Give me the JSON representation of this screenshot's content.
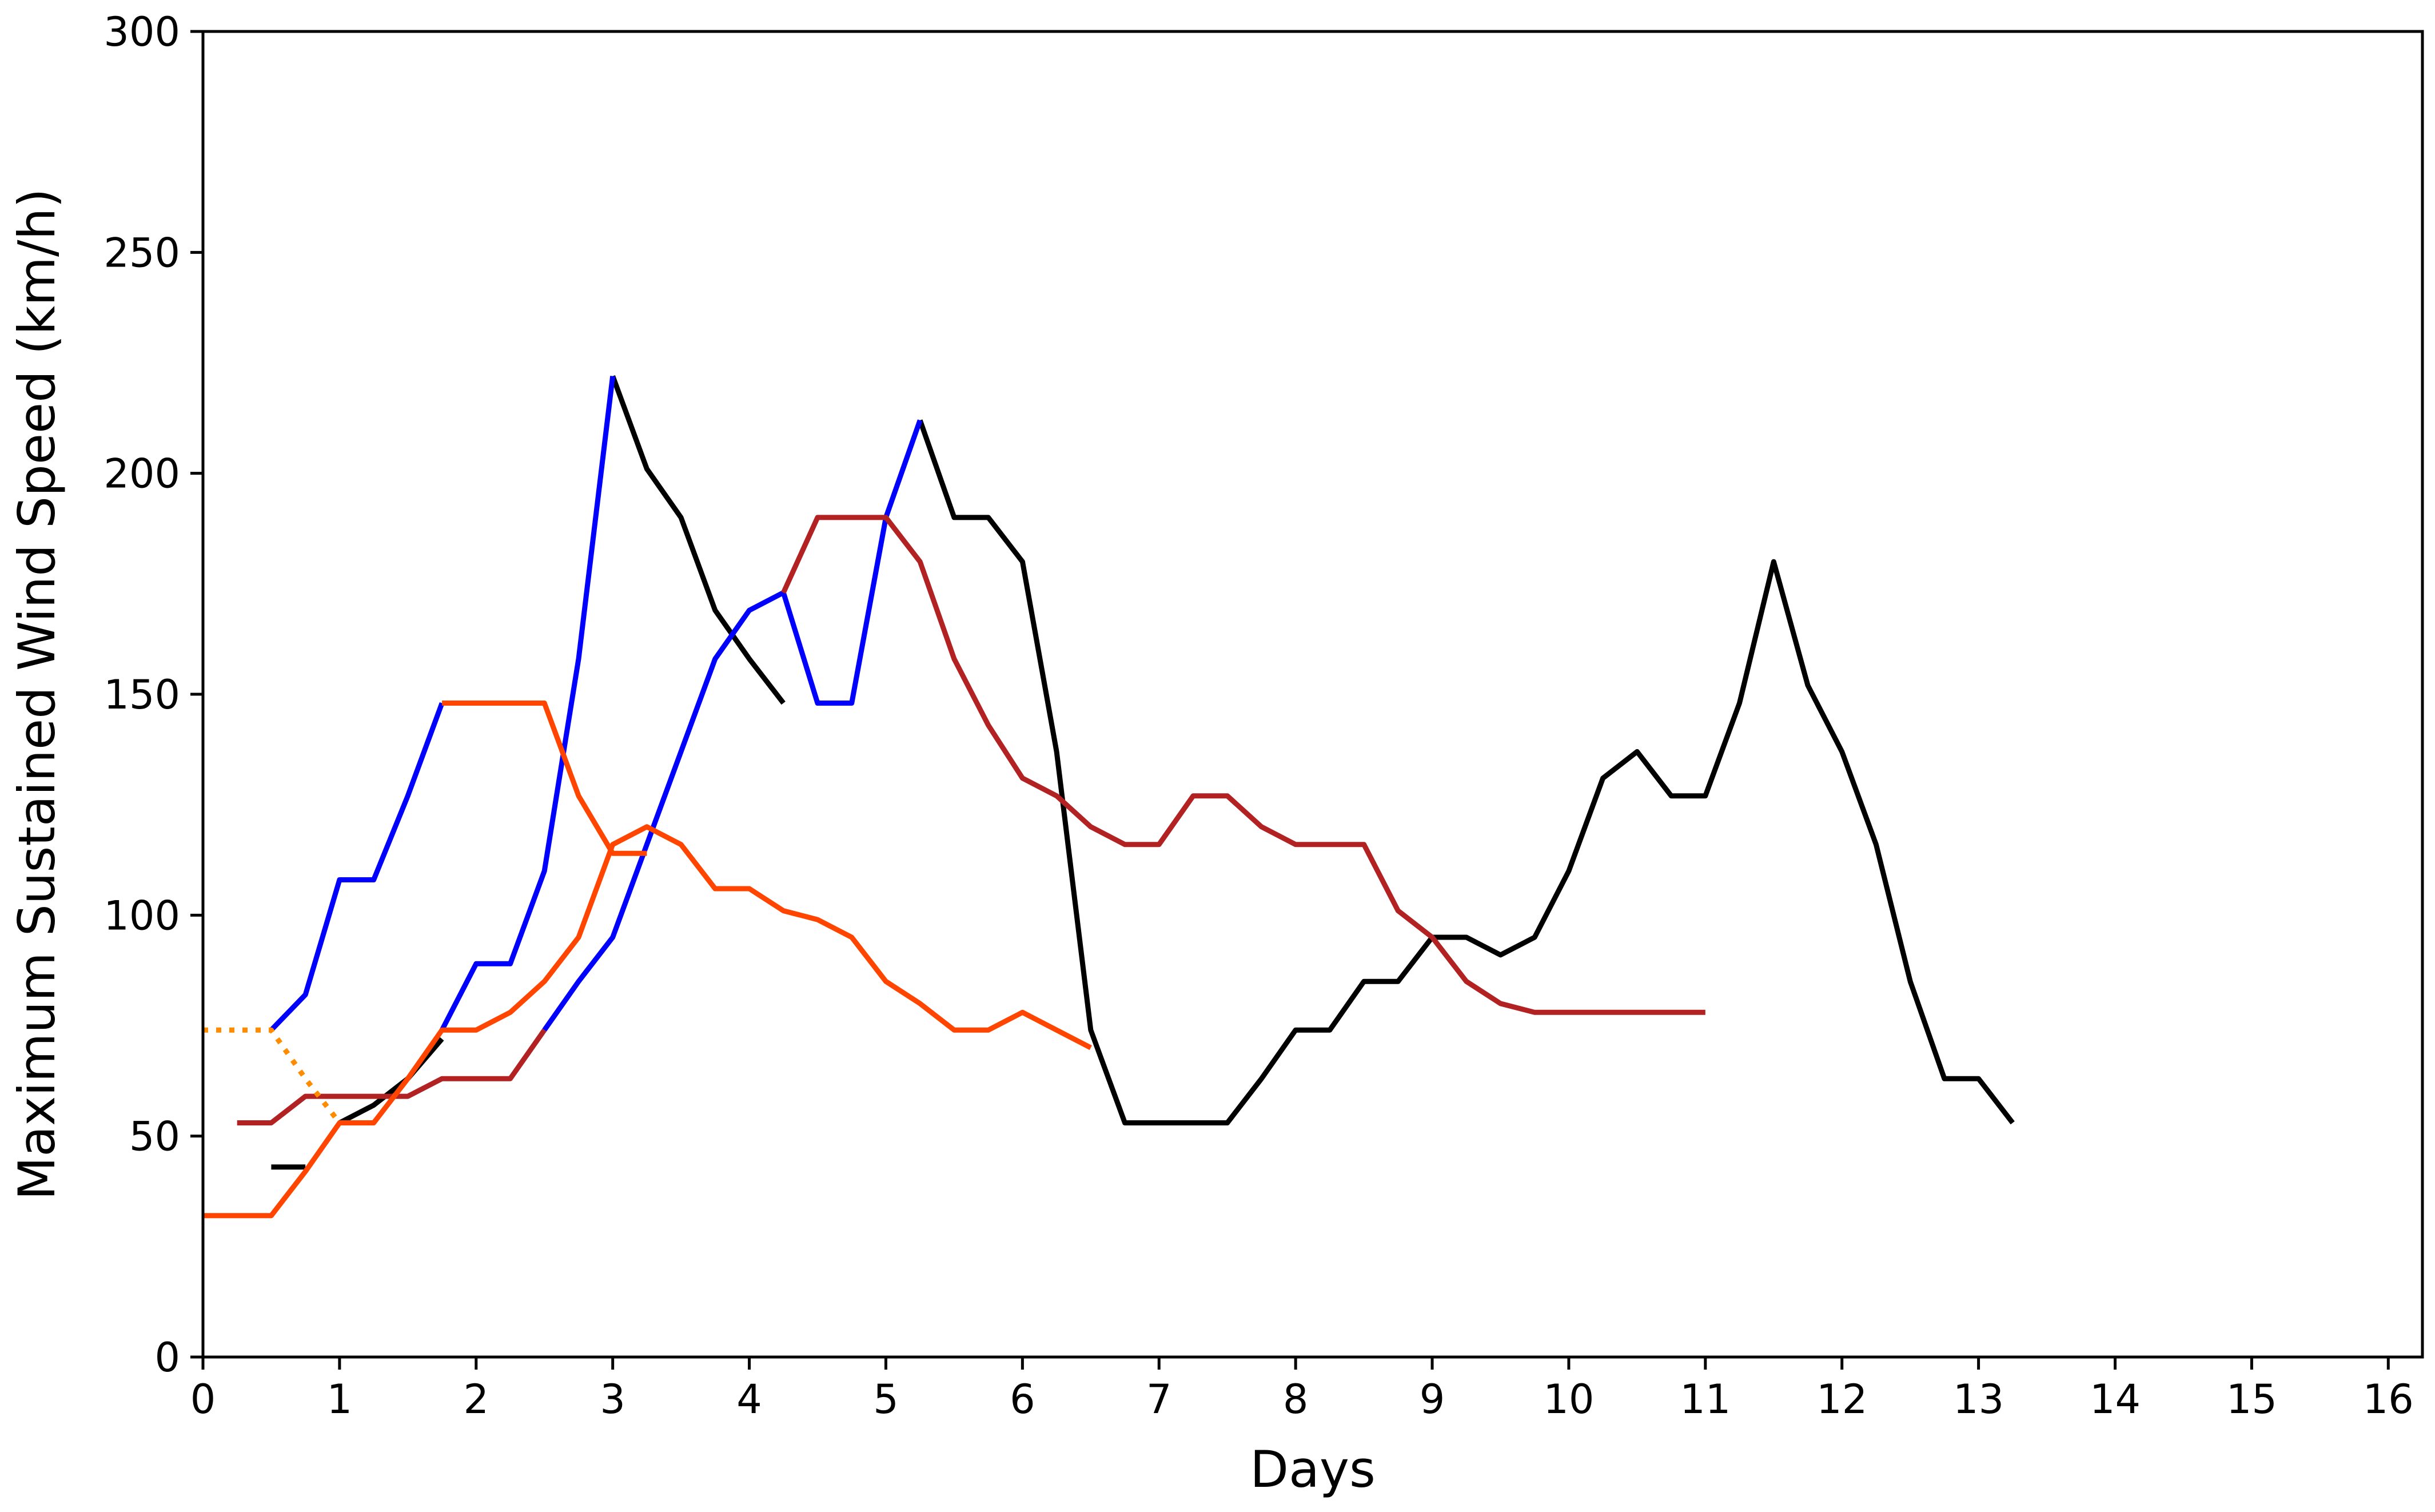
{
  "chart_data": {
    "type": "line",
    "title": "",
    "xlabel": "Days",
    "ylabel": "Maximum Sustained Wind Speed (km/h)",
    "xlim": [
      0,
      16.25
    ],
    "ylim": [
      0,
      300
    ],
    "xticks": [
      0,
      1,
      2,
      3,
      4,
      5,
      6,
      7,
      8,
      9,
      10,
      11,
      12,
      13,
      14,
      15,
      16
    ],
    "yticks": [
      0,
      50,
      100,
      150,
      200,
      250,
      300
    ],
    "grid": false,
    "legend": "none",
    "series": [
      {
        "color": "#000000",
        "style": "solid",
        "segments": [
          [
            [
              0.5,
              43
            ],
            [
              0.75,
              43
            ]
          ],
          [
            [
              1.0,
              53
            ],
            [
              1.25,
              57
            ],
            [
              1.5,
              63
            ],
            [
              1.75,
              72
            ]
          ],
          [
            [
              3.0,
              222
            ],
            [
              3.25,
              201
            ],
            [
              3.5,
              190
            ],
            [
              3.75,
              169
            ],
            [
              4.0,
              158
            ],
            [
              4.25,
              148
            ]
          ],
          [
            [
              5.25,
              212
            ],
            [
              5.5,
              190
            ],
            [
              5.75,
              190
            ],
            [
              6.0,
              180
            ],
            [
              6.25,
              137
            ],
            [
              6.5,
              74
            ],
            [
              6.75,
              53
            ],
            [
              7.0,
              53
            ],
            [
              7.25,
              53
            ],
            [
              7.5,
              53
            ],
            [
              7.75,
              63
            ],
            [
              8.0,
              74
            ],
            [
              8.25,
              74
            ],
            [
              8.5,
              85
            ],
            [
              8.75,
              85
            ],
            [
              9.0,
              95
            ],
            [
              9.25,
              95
            ],
            [
              9.5,
              91
            ],
            [
              9.75,
              95
            ],
            [
              10.0,
              110
            ],
            [
              10.25,
              131
            ],
            [
              10.5,
              137
            ],
            [
              10.75,
              127
            ],
            [
              11.0,
              127
            ],
            [
              11.25,
              148
            ],
            [
              11.5,
              180
            ],
            [
              11.75,
              152
            ],
            [
              12.0,
              137
            ],
            [
              12.25,
              116
            ],
            [
              12.5,
              85
            ],
            [
              12.75,
              63
            ],
            [
              13.0,
              63
            ],
            [
              13.25,
              53
            ]
          ]
        ]
      },
      {
        "color": "#0000ff",
        "style": "solid",
        "segments": [
          [
            [
              0.5,
              74
            ],
            [
              0.75,
              82
            ],
            [
              1.0,
              108
            ],
            [
              1.25,
              108
            ],
            [
              1.5,
              127
            ],
            [
              1.75,
              148
            ]
          ],
          [
            [
              1.75,
              74
            ],
            [
              2.0,
              89
            ],
            [
              2.25,
              89
            ],
            [
              2.5,
              110
            ],
            [
              2.75,
              158
            ],
            [
              3.0,
              222
            ]
          ],
          [
            [
              2.5,
              74
            ],
            [
              2.75,
              85
            ],
            [
              3.0,
              95
            ],
            [
              3.25,
              116
            ],
            [
              3.5,
              137
            ],
            [
              3.75,
              158
            ],
            [
              4.0,
              169
            ],
            [
              4.25,
              173
            ],
            [
              4.5,
              148
            ],
            [
              4.75,
              148
            ],
            [
              5.0,
              190
            ],
            [
              5.25,
              212
            ]
          ]
        ]
      },
      {
        "color": "#b22222",
        "style": "solid",
        "segments": [
          [
            [
              0.25,
              53
            ],
            [
              0.5,
              53
            ],
            [
              0.75,
              59
            ],
            [
              1.0,
              59
            ],
            [
              1.25,
              59
            ],
            [
              1.5,
              59
            ],
            [
              1.75,
              63
            ],
            [
              2.0,
              63
            ],
            [
              2.25,
              63
            ],
            [
              2.5,
              74
            ]
          ],
          [
            [
              4.25,
              173
            ],
            [
              4.5,
              190
            ],
            [
              4.75,
              190
            ],
            [
              5.0,
              190
            ],
            [
              5.25,
              180
            ],
            [
              5.5,
              158
            ],
            [
              5.75,
              143
            ],
            [
              6.0,
              131
            ],
            [
              6.25,
              127
            ],
            [
              6.5,
              120
            ],
            [
              6.75,
              116
            ],
            [
              7.0,
              116
            ],
            [
              7.25,
              127
            ],
            [
              7.5,
              127
            ],
            [
              7.75,
              120
            ],
            [
              8.0,
              116
            ],
            [
              8.25,
              116
            ],
            [
              8.5,
              116
            ],
            [
              8.75,
              101
            ],
            [
              9.0,
              95
            ],
            [
              9.25,
              85
            ],
            [
              9.5,
              80
            ],
            [
              9.75,
              78
            ],
            [
              10.0,
              78
            ],
            [
              10.5,
              78
            ],
            [
              11.0,
              78
            ]
          ]
        ]
      },
      {
        "color": "#ff4500",
        "style": "solid",
        "segments": [
          [
            [
              0.0,
              32
            ],
            [
              0.5,
              32
            ],
            [
              0.75,
              42
            ],
            [
              1.0,
              53
            ],
            [
              1.25,
              53
            ],
            [
              1.5,
              63
            ],
            [
              1.75,
              74
            ],
            [
              2.0,
              74
            ],
            [
              2.25,
              78
            ],
            [
              2.5,
              85
            ],
            [
              2.75,
              95
            ],
            [
              3.0,
              116
            ],
            [
              3.25,
              120
            ],
            [
              3.5,
              116
            ],
            [
              3.75,
              106
            ],
            [
              4.0,
              106
            ],
            [
              4.25,
              101
            ],
            [
              4.5,
              99
            ],
            [
              4.75,
              95
            ],
            [
              5.0,
              85
            ],
            [
              5.25,
              80
            ],
            [
              5.5,
              74
            ],
            [
              5.75,
              74
            ],
            [
              6.0,
              78
            ],
            [
              6.25,
              74
            ],
            [
              6.5,
              70
            ]
          ],
          [
            [
              1.75,
              148
            ],
            [
              2.0,
              148
            ],
            [
              2.25,
              148
            ],
            [
              2.5,
              148
            ],
            [
              2.75,
              127
            ],
            [
              3.0,
              114
            ],
            [
              3.25,
              114
            ]
          ]
        ]
      },
      {
        "color": "#ff8c00",
        "style": "dotted",
        "segments": [
          [
            [
              0.0,
              74
            ],
            [
              0.5,
              74
            ],
            [
              0.75,
              63
            ],
            [
              1.0,
              53
            ]
          ]
        ]
      }
    ]
  }
}
